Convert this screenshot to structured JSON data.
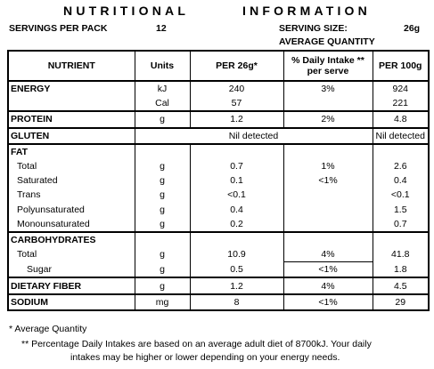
{
  "title": "NUTRITIONAL  INFORMATION",
  "servings_per_pack_label": "SERVINGS PER PACK",
  "servings_per_pack_value": "12",
  "serving_size_label": "SERVING SIZE:",
  "serving_size_value": "26g",
  "average_quantity_label": "AVERAGE QUANTITY",
  "headers": {
    "nutrient": "NUTRIENT",
    "units": "Units",
    "per_serve": "PER 26g*",
    "daily_intake_line1": "% Daily Intake **",
    "daily_intake_line2": "per serve",
    "per_100g": "PER 100g"
  },
  "rows": {
    "energy_kj": {
      "name": "ENERGY",
      "unit": "kJ",
      "per_serve": "240",
      "daily": "3%",
      "per_100g": "924"
    },
    "energy_cal": {
      "unit": "Cal",
      "per_serve": "57",
      "per_100g": "221"
    },
    "protein": {
      "name": "PROTEIN",
      "unit": "g",
      "per_serve": "1.2",
      "daily": "2%",
      "per_100g": "4.8"
    },
    "gluten": {
      "name": "GLUTEN",
      "per_serve": "Nil detected",
      "per_100g": "Nil detected"
    },
    "fat": {
      "name": "FAT"
    },
    "fat_total": {
      "name": "Total",
      "unit": "g",
      "per_serve": "0.7",
      "daily": "1%",
      "per_100g": "2.6"
    },
    "fat_saturated": {
      "name": "Saturated",
      "unit": "g",
      "per_serve": "0.1",
      "daily": "<1%",
      "per_100g": "0.4"
    },
    "fat_trans": {
      "name": "Trans",
      "unit": "g",
      "per_serve": "<0.1",
      "per_100g": "<0.1"
    },
    "fat_poly": {
      "name": "Polyunsaturated",
      "unit": "g",
      "per_serve": "0.4",
      "per_100g": "1.5"
    },
    "fat_mono": {
      "name": "Monounsaturated",
      "unit": "g",
      "per_serve": "0.2",
      "per_100g": "0.7"
    },
    "carbohydrates": {
      "name": "CARBOHYDRATES"
    },
    "carb_total": {
      "name": "Total",
      "unit": "g",
      "per_serve": "10.9",
      "daily": "4%",
      "per_100g": "41.8"
    },
    "carb_sugar": {
      "name": "Sugar",
      "unit": "g",
      "per_serve": "0.5",
      "daily": "<1%",
      "per_100g": "1.8"
    },
    "fiber": {
      "name": "DIETARY FIBER",
      "unit": "g",
      "per_serve": "1.2",
      "daily": "4%",
      "per_100g": "4.5"
    },
    "sodium": {
      "name": "SODIUM",
      "unit": "mg",
      "per_serve": "8",
      "daily": "<1%",
      "per_100g": "29"
    }
  },
  "footnotes": {
    "average": "* Average Quantity",
    "daily_line1": "** Percentage Daily Intakes are based on an average adult diet of 8700kJ. Your daily",
    "daily_line2": "intakes may be higher or lower depending on your energy needs."
  }
}
